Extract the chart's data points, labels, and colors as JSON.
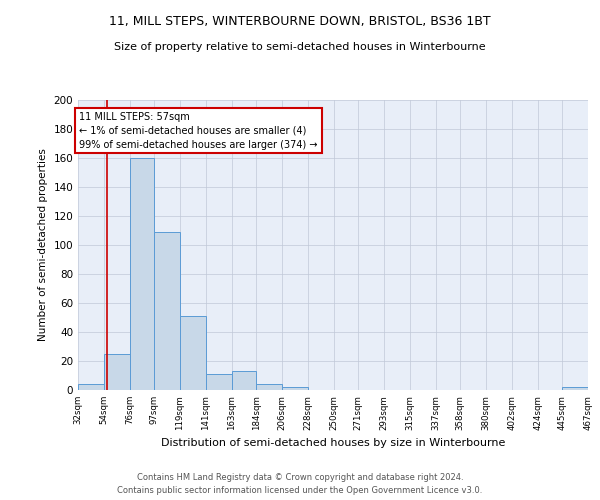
{
  "title1": "11, MILL STEPS, WINTERBOURNE DOWN, BRISTOL, BS36 1BT",
  "title2": "Size of property relative to semi-detached houses in Winterbourne",
  "xlabel": "Distribution of semi-detached houses by size in Winterbourne",
  "ylabel": "Number of semi-detached properties",
  "footer1": "Contains HM Land Registry data © Crown copyright and database right 2024.",
  "footer2": "Contains public sector information licensed under the Open Government Licence v3.0.",
  "bins": [
    32,
    54,
    76,
    97,
    119,
    141,
    163,
    184,
    206,
    228,
    250,
    271,
    293,
    315,
    337,
    358,
    380,
    402,
    424,
    445,
    467
  ],
  "counts": [
    4,
    25,
    160,
    109,
    51,
    11,
    13,
    4,
    2,
    0,
    0,
    0,
    0,
    0,
    0,
    0,
    0,
    0,
    0,
    2
  ],
  "property_size": 57,
  "property_name": "11 MILL STEPS",
  "pct_smaller": 1,
  "n_smaller": 4,
  "pct_larger": 99,
  "n_larger": 374,
  "bar_color": "#c8d8e8",
  "bar_edge_color": "#5b9bd5",
  "red_line_color": "#cc0000",
  "annotation_box_edge": "#cc0000",
  "background_color": "#e8eef8",
  "grid_color": "#c0c8d8",
  "ylim": [
    0,
    200
  ],
  "yticks": [
    0,
    20,
    40,
    60,
    80,
    100,
    120,
    140,
    160,
    180,
    200
  ],
  "annotation_text_line1": "11 MILL STEPS: 57sqm",
  "annotation_text_line2": "← 1% of semi-detached houses are smaller (4)",
  "annotation_text_line3": "99% of semi-detached houses are larger (374) →"
}
